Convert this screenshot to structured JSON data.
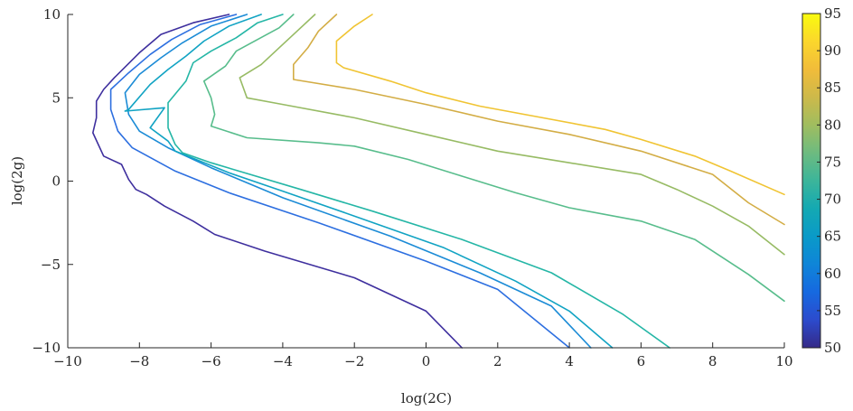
{
  "chart_data": {
    "type": "contour",
    "xlabel": "log(2C)",
    "ylabel": "log(2g)",
    "xlim": [
      -10,
      10
    ],
    "ylim": [
      -10,
      10
    ],
    "xticks": [
      -10,
      -8,
      -6,
      -4,
      -2,
      0,
      2,
      4,
      6,
      8,
      10
    ],
    "yticks": [
      -10,
      -5,
      0,
      5,
      10
    ],
    "xtick_labels": [
      "−10",
      "−8",
      "−6",
      "−4",
      "−2",
      "0",
      "2",
      "4",
      "6",
      "8",
      "10"
    ],
    "ytick_labels": [
      "−10",
      "−5",
      "0",
      "5",
      "10"
    ],
    "grid": false,
    "colorbar": {
      "ticks": [
        50,
        55,
        60,
        65,
        70,
        75,
        80,
        85,
        90,
        95
      ],
      "labels": [
        "50",
        "55",
        "60",
        "65",
        "70",
        "75",
        "80",
        "85",
        "90",
        "95"
      ],
      "range": [
        50,
        95
      ],
      "colormap": "parula"
    },
    "levels": [
      {
        "level": 50,
        "color": "#3e2f9e",
        "points": [
          [
            -5.5,
            10
          ],
          [
            -6.5,
            9.5
          ],
          [
            -7.4,
            8.8
          ],
          [
            -8.0,
            7.7
          ],
          [
            -8.7,
            6.2
          ],
          [
            -9.0,
            5.5
          ],
          [
            -9.2,
            4.8
          ],
          [
            -9.2,
            3.8
          ],
          [
            -9.3,
            2.9
          ],
          [
            -9.0,
            1.5
          ],
          [
            -8.5,
            1.0
          ],
          [
            -8.3,
            0.1
          ],
          [
            -8.1,
            -0.5
          ],
          [
            -7.8,
            -0.8
          ],
          [
            -7.3,
            -1.5
          ],
          [
            -6.5,
            -2.4
          ],
          [
            -5.9,
            -3.2
          ],
          [
            -4.5,
            -4.2
          ],
          [
            -2.0,
            -5.8
          ],
          [
            0.0,
            -7.8
          ],
          [
            1.0,
            -10
          ]
        ]
      },
      {
        "level": 55,
        "color": "#2d6fe0",
        "points": [
          [
            -5.3,
            10
          ],
          [
            -6.3,
            9.4
          ],
          [
            -7.1,
            8.5
          ],
          [
            -7.7,
            7.6
          ],
          [
            -8.3,
            6.5
          ],
          [
            -8.8,
            5.5
          ],
          [
            -8.8,
            4.3
          ],
          [
            -8.6,
            3.0
          ],
          [
            -8.2,
            2.0
          ],
          [
            -7.0,
            0.6
          ],
          [
            -5.5,
            -0.7
          ],
          [
            -3.0,
            -2.5
          ],
          [
            0.0,
            -4.8
          ],
          [
            2.0,
            -6.5
          ],
          [
            4.0,
            -10
          ]
        ]
      },
      {
        "level": 60,
        "color": "#1b8bd6",
        "points": [
          [
            -5.0,
            10
          ],
          [
            -6.0,
            9.3
          ],
          [
            -6.8,
            8.3
          ],
          [
            -7.4,
            7.4
          ],
          [
            -8.0,
            6.4
          ],
          [
            -8.4,
            5.3
          ],
          [
            -8.3,
            4.0
          ],
          [
            -8.0,
            3.0
          ],
          [
            -7.2,
            2.0
          ],
          [
            -6.0,
            0.8
          ],
          [
            -4.0,
            -1.0
          ],
          [
            -1.0,
            -3.3
          ],
          [
            1.5,
            -5.5
          ],
          [
            3.5,
            -7.5
          ],
          [
            4.6,
            -10
          ]
        ]
      },
      {
        "level": 65,
        "color": "#11a3c3",
        "points": [
          [
            -4.6,
            10
          ],
          [
            -5.5,
            9.3
          ],
          [
            -6.2,
            8.4
          ],
          [
            -6.7,
            7.5
          ],
          [
            -7.2,
            6.7
          ],
          [
            -7.7,
            5.8
          ],
          [
            -8.3,
            4.3
          ],
          [
            -8.4,
            4.2
          ],
          [
            -7.3,
            4.4
          ],
          [
            -7.7,
            3.2
          ],
          [
            -7.2,
            2.4
          ],
          [
            -7.0,
            1.8
          ],
          [
            -5.5,
            0.5
          ],
          [
            -4.0,
            -0.6
          ],
          [
            -2.0,
            -2.1
          ],
          [
            0.5,
            -4.0
          ],
          [
            2.5,
            -6.0
          ],
          [
            4.0,
            -7.8
          ],
          [
            5.2,
            -10
          ]
        ]
      },
      {
        "level": 70,
        "color": "#25b6a6",
        "points": [
          [
            -4.0,
            10
          ],
          [
            -4.7,
            9.5
          ],
          [
            -5.3,
            8.6
          ],
          [
            -6.0,
            7.8
          ],
          [
            -6.5,
            7.1
          ],
          [
            -6.7,
            6.0
          ],
          [
            -7.2,
            4.7
          ],
          [
            -7.2,
            3.2
          ],
          [
            -7.0,
            2.2
          ],
          [
            -6.8,
            1.7
          ],
          [
            -6.0,
            1.1
          ],
          [
            -3.5,
            -0.5
          ],
          [
            -1.5,
            -1.8
          ],
          [
            1.0,
            -3.5
          ],
          [
            3.5,
            -5.5
          ],
          [
            5.5,
            -8.0
          ],
          [
            6.8,
            -10
          ]
        ]
      },
      {
        "level": 75,
        "color": "#58bd8c",
        "points": [
          [
            -3.7,
            10
          ],
          [
            -4.1,
            9.2
          ],
          [
            -4.7,
            8.5
          ],
          [
            -5.3,
            7.8
          ],
          [
            -5.6,
            6.9
          ],
          [
            -6.2,
            6.0
          ],
          [
            -6.0,
            5.0
          ],
          [
            -5.9,
            4.0
          ],
          [
            -6.0,
            3.3
          ],
          [
            -5.0,
            2.6
          ],
          [
            -3.0,
            2.3
          ],
          [
            -2.0,
            2.1
          ],
          [
            -0.5,
            1.3
          ],
          [
            1.0,
            0.3
          ],
          [
            2.5,
            -0.7
          ],
          [
            4.0,
            -1.6
          ],
          [
            6.0,
            -2.4
          ],
          [
            7.5,
            -3.5
          ],
          [
            9.0,
            -5.6
          ],
          [
            10.0,
            -7.2
          ]
        ]
      },
      {
        "level": 80,
        "color": "#97bb64",
        "points": [
          [
            -3.1,
            10
          ],
          [
            -3.6,
            9.0
          ],
          [
            -4.1,
            8.0
          ],
          [
            -4.6,
            7.0
          ],
          [
            -5.2,
            6.2
          ],
          [
            -5.0,
            5.0
          ],
          [
            -4.0,
            4.6
          ],
          [
            -2.0,
            3.8
          ],
          [
            0.0,
            2.8
          ],
          [
            2.0,
            1.8
          ],
          [
            4.0,
            1.1
          ],
          [
            6.0,
            0.4
          ],
          [
            7.0,
            -0.5
          ],
          [
            8.0,
            -1.5
          ],
          [
            9.0,
            -2.7
          ],
          [
            10.0,
            -4.4
          ]
        ]
      },
      {
        "level": 85,
        "color": "#d3ad45",
        "points": [
          [
            -2.5,
            10
          ],
          [
            -3.0,
            9.0
          ],
          [
            -3.3,
            8.0
          ],
          [
            -3.7,
            7.0
          ],
          [
            -3.7,
            6.1
          ],
          [
            -2.0,
            5.5
          ],
          [
            0.0,
            4.6
          ],
          [
            2.0,
            3.6
          ],
          [
            4.0,
            2.8
          ],
          [
            6.0,
            1.8
          ],
          [
            8.0,
            0.4
          ],
          [
            9.0,
            -1.3
          ],
          [
            10.0,
            -2.6
          ]
        ]
      },
      {
        "level": 90,
        "color": "#f0c433",
        "points": [
          [
            -1.5,
            10
          ],
          [
            -2.0,
            9.3
          ],
          [
            -2.5,
            8.4
          ],
          [
            -2.5,
            7.1
          ],
          [
            -2.3,
            6.8
          ],
          [
            -1.0,
            6.0
          ],
          [
            0.0,
            5.3
          ],
          [
            1.5,
            4.5
          ],
          [
            3.0,
            3.9
          ],
          [
            5.0,
            3.1
          ],
          [
            6.0,
            2.5
          ],
          [
            7.5,
            1.5
          ],
          [
            8.5,
            0.6
          ],
          [
            10.0,
            -0.8
          ]
        ]
      }
    ]
  }
}
